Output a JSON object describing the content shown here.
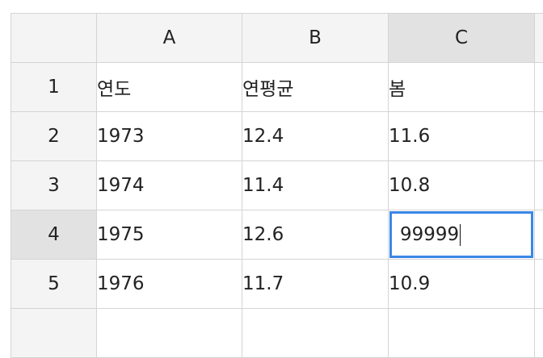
{
  "columns": {
    "a": "A",
    "b": "B",
    "c": "C"
  },
  "rows": [
    {
      "num": "1",
      "a": "연도",
      "b": "연평균",
      "c": "봄"
    },
    {
      "num": "2",
      "a": "1973",
      "b": "12.4",
      "c": "11.6"
    },
    {
      "num": "3",
      "a": "1974",
      "b": "11.4",
      "c": "10.8"
    },
    {
      "num": "4",
      "a": "1975",
      "b": "12.6",
      "c": "99999"
    },
    {
      "num": "5",
      "a": "1976",
      "b": "11.7",
      "c": "10.9"
    }
  ],
  "active_cell": {
    "column": "C",
    "row": "4"
  },
  "colors": {
    "selection_border": "#3a87e6",
    "header_bg": "#f4f4f4",
    "active_header_bg": "#e2e2e2",
    "grid_line": "#d4d4d4"
  }
}
